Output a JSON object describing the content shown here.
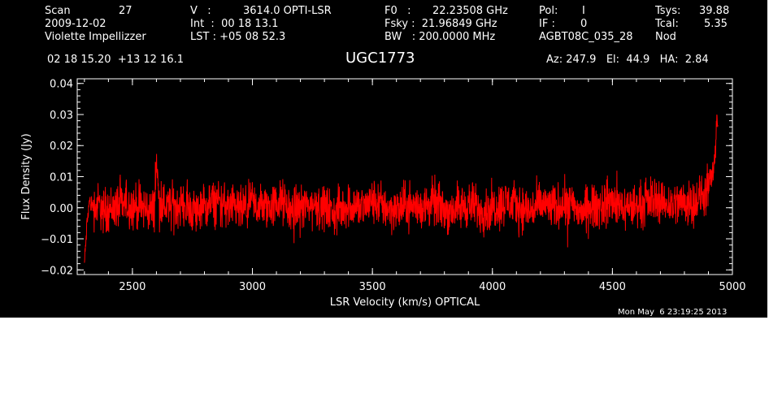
{
  "header": {
    "scan_label": "Scan",
    "scan_value": "27",
    "date": "2009-12-02",
    "observer": "Violette Impellizzer",
    "v_label": "V   :",
    "v_value": "3614.0 OPTI-LSR",
    "int_line": "Int  :  00 18 13.1",
    "lst_line": "LST : +05 08 52.3",
    "f0_label": "F0   :",
    "f0_value": "22.23508 GHz",
    "fsky_line": "Fsky :  21.96849 GHz",
    "bw_line": "BW   : 200.0000 MHz",
    "pol_label": "Pol:",
    "pol_value": "I",
    "if_label": "IF :",
    "if_value": "0",
    "project": "AGBT08C_035_28",
    "tsys_label": "Tsys:",
    "tsys_value": "39.88",
    "tcal_label": "Tcal:",
    "tcal_value": "5.35",
    "mode": "Nod",
    "coords": "02 18 15.20  +13 12 16.1",
    "source": "UGC1773",
    "az_el_ha": "Az: 247.9   El:  44.9   HA:  2.84"
  },
  "footer": {
    "timestamp": "Mon May  6 23:19:25 2013"
  },
  "colors": {
    "background": "#000000",
    "axes": "#ffffff",
    "trace": "#ff0000",
    "page": "#ffffff"
  },
  "chart_data": {
    "type": "line",
    "title": "UGC1773",
    "xlabel": "LSR Velocity (km/s) OPTICAL",
    "ylabel": "Flux Density (Jy)",
    "xlim": [
      2270,
      5000
    ],
    "ylim": [
      -0.0215,
      0.0415
    ],
    "xticks": [
      2500,
      3000,
      3500,
      4000,
      4500,
      5000
    ],
    "xtick_labels": [
      "2500",
      "3000",
      "3500",
      "4000",
      "4500",
      "5000"
    ],
    "yticks": [
      -0.02,
      -0.01,
      0.0,
      0.01,
      0.02,
      0.03,
      0.04
    ],
    "ytick_labels": [
      "−0.02",
      "−0.01",
      "0.00",
      "0.01",
      "0.02",
      "0.03",
      "0.04"
    ],
    "grid": false,
    "series": [
      {
        "x": [
          2300,
          2305,
          2310,
          2315,
          2320,
          2330,
          2345,
          2360,
          2380,
          2420,
          2480,
          2540,
          2590,
          2600,
          2610,
          2650,
          2700,
          2760,
          2800,
          2850,
          2900,
          2960,
          3000,
          3060,
          3120,
          3160,
          3200,
          3260,
          3300,
          3340,
          3400,
          3460,
          3500,
          3560,
          3610,
          3640,
          3700,
          3760,
          3800,
          3860,
          3910,
          3960,
          4000,
          4060,
          4120,
          4160,
          4200,
          4260,
          4300,
          4360,
          4420,
          4460,
          4500,
          4560,
          4620,
          4680,
          4740,
          4800,
          4850,
          4880,
          4900,
          4910,
          4920,
          4930,
          4935,
          4940
        ],
        "y": [
          -0.018,
          -0.012,
          -0.006,
          -0.002,
          0.002,
          0.001,
          0.0,
          0.001,
          -0.001,
          0.0,
          0.001,
          0.0,
          -0.001,
          0.016,
          0.002,
          0.0,
          0.001,
          -0.001,
          0.0,
          0.002,
          0.0,
          -0.001,
          0.001,
          0.0,
          0.002,
          -0.001,
          0.0,
          0.001,
          0.0,
          -0.002,
          0.001,
          0.0,
          0.002,
          0.0,
          -0.001,
          0.001,
          0.0,
          0.002,
          -0.001,
          0.0,
          0.001,
          -0.001,
          0.0,
          0.002,
          0.0,
          -0.001,
          0.001,
          0.0,
          0.002,
          -0.001,
          0.0,
          0.001,
          0.002,
          0.0,
          0.001,
          0.003,
          0.001,
          0.002,
          0.002,
          0.004,
          0.006,
          0.008,
          0.012,
          0.017,
          0.032,
          0.025
        ]
      }
    ]
  }
}
